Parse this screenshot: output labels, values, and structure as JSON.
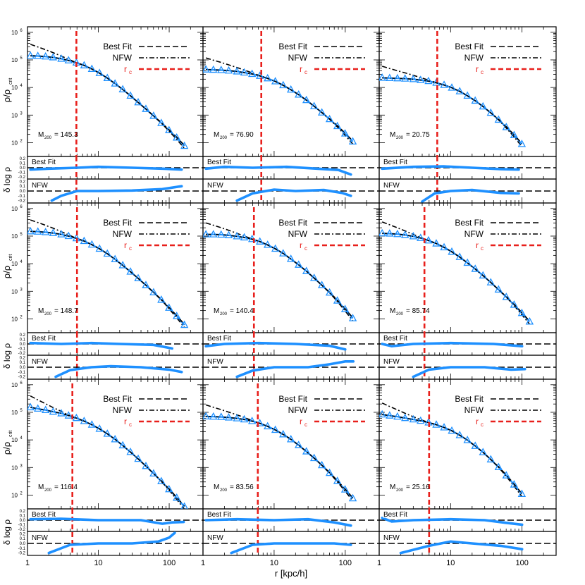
{
  "axes": {
    "xlabel": "r [kpc/h]",
    "ylabel_main": "ρ/ρ",
    "ylabel_main_sub": "crit",
    "ylabel_resid": "δ log ρ",
    "x_ticks": [
      "1",
      "10",
      "100"
    ],
    "y_ticks_main": [
      {
        "base": "10",
        "exp": "6"
      },
      {
        "base": "10",
        "exp": "5"
      },
      {
        "base": "10",
        "exp": "4"
      },
      {
        "base": "10",
        "exp": "3"
      },
      {
        "base": "10",
        "exp": "2"
      }
    ],
    "resid_ticks": [
      "0.2",
      "0.1",
      "0.0",
      "-0.1",
      "-0.2"
    ]
  },
  "legend": {
    "best_fit": "Best Fit",
    "nfw": "NFW",
    "rc": "r",
    "rc_sub": "c"
  },
  "residual_labels": {
    "best_fit": "Best Fit",
    "nfw": "NFW"
  },
  "colors": {
    "data": "#1e90ff",
    "rc_line": "#e8201c",
    "fit": "#000000"
  },
  "chart_data": {
    "type": "line",
    "layout": "3x3 grid of density profiles with residual panels",
    "x_scale": "log",
    "xlim": [
      1,
      300
    ],
    "ylim_log10": [
      1.5,
      6.2
    ],
    "resid_ylim": [
      -0.25,
      0.25
    ],
    "panels": [
      {
        "mass_label": "M",
        "mass_sub": "200",
        "mass_value": "= 145.3",
        "rc": 4.9,
        "data_x": [
          1.1,
          1.4,
          1.8,
          2.3,
          3.0,
          3.8,
          4.9,
          6.3,
          8.1,
          10.4,
          13.4,
          17.2,
          22.1,
          28.4,
          36.5,
          46.9,
          60.2,
          77.4,
          99.4,
          127.7,
          164.1
        ],
        "data_y": [
          5.15,
          5.14,
          5.12,
          5.09,
          5.04,
          4.98,
          4.9,
          4.8,
          4.67,
          4.52,
          4.34,
          4.14,
          3.93,
          3.7,
          3.46,
          3.22,
          2.97,
          2.71,
          2.45,
          2.18,
          1.88
        ],
        "resid_best": [
          [
            1.1,
            -0.04
          ],
          [
            2,
            -0.02
          ],
          [
            5,
            0.0
          ],
          [
            10,
            0.02
          ],
          [
            30,
            0.0
          ],
          [
            80,
            -0.02
          ],
          [
            150,
            -0.04
          ]
        ],
        "resid_nfw": [
          [
            2.2,
            -0.2
          ],
          [
            3,
            -0.1
          ],
          [
            5,
            0.0
          ],
          [
            10,
            0.0
          ],
          [
            30,
            0.01
          ],
          [
            80,
            0.04
          ],
          [
            150,
            0.1
          ]
        ]
      },
      {
        "mass_label": "M",
        "mass_sub": "200",
        "mass_value": "= 76.90",
        "rc": 6.6,
        "data_x": [
          1.1,
          1.4,
          1.8,
          2.3,
          3.0,
          3.8,
          4.9,
          6.3,
          8.1,
          10.4,
          13.4,
          17.2,
          22.1,
          28.4,
          36.5,
          46.9,
          60.2,
          77.4,
          99.4,
          127.7
        ],
        "data_y": [
          4.65,
          4.64,
          4.63,
          4.61,
          4.58,
          4.54,
          4.49,
          4.42,
          4.33,
          4.22,
          4.08,
          3.92,
          3.74,
          3.54,
          3.32,
          3.09,
          2.85,
          2.6,
          2.33,
          2.04
        ],
        "resid_best": [
          [
            1.1,
            -0.02
          ],
          [
            2,
            0.02
          ],
          [
            5,
            0.0
          ],
          [
            15,
            0.02
          ],
          [
            40,
            -0.02
          ],
          [
            80,
            -0.05
          ],
          [
            120,
            -0.15
          ]
        ],
        "resid_nfw": [
          [
            3,
            -0.2
          ],
          [
            5,
            -0.05
          ],
          [
            10,
            0.03
          ],
          [
            20,
            0.0
          ],
          [
            50,
            0.02
          ],
          [
            90,
            -0.04
          ],
          [
            120,
            -0.1
          ]
        ]
      },
      {
        "mass_label": "M",
        "mass_sub": "200",
        "mass_value": "= 20.75",
        "rc": 6.5,
        "data_x": [
          1.1,
          1.4,
          1.8,
          2.3,
          3.0,
          3.8,
          4.9,
          6.3,
          8.1,
          10.4,
          13.4,
          17.2,
          22.1,
          28.4,
          36.5,
          46.9,
          60.2,
          77.4,
          99.4
        ],
        "data_y": [
          4.35,
          4.34,
          4.33,
          4.32,
          4.3,
          4.27,
          4.23,
          4.17,
          4.09,
          3.99,
          3.86,
          3.7,
          3.52,
          3.31,
          3.08,
          2.83,
          2.56,
          2.27,
          1.95
        ],
        "resid_best": [
          [
            1.1,
            -0.02
          ],
          [
            3,
            0.02
          ],
          [
            8,
            0.03
          ],
          [
            20,
            0.0
          ],
          [
            50,
            -0.03
          ],
          [
            90,
            -0.04
          ]
        ],
        "resid_nfw": [
          [
            4,
            -0.22
          ],
          [
            6,
            -0.05
          ],
          [
            10,
            0.0
          ],
          [
            20,
            0.02
          ],
          [
            50,
            -0.04
          ],
          [
            90,
            -0.05
          ]
        ]
      },
      {
        "mass_label": "M",
        "mass_sub": "200",
        "mass_value": "= 148.7",
        "rc": 5.0,
        "data_x": [
          1.1,
          1.4,
          1.8,
          2.3,
          3.0,
          3.8,
          4.9,
          6.3,
          8.1,
          10.4,
          13.4,
          17.2,
          22.1,
          28.4,
          36.5,
          46.9,
          60.2,
          77.4,
          99.4,
          127.7,
          164.1
        ],
        "data_y": [
          5.17,
          5.16,
          5.14,
          5.11,
          5.06,
          5.0,
          4.92,
          4.82,
          4.69,
          4.54,
          4.36,
          4.16,
          3.94,
          3.71,
          3.47,
          3.22,
          2.96,
          2.69,
          2.4,
          2.1,
          1.78
        ],
        "resid_best": [
          [
            1.1,
            0.02
          ],
          [
            3,
            0.0
          ],
          [
            8,
            0.02
          ],
          [
            20,
            0.0
          ],
          [
            60,
            -0.02
          ],
          [
            110,
            -0.1
          ]
        ],
        "resid_nfw": [
          [
            2.5,
            -0.2
          ],
          [
            4,
            -0.06
          ],
          [
            8,
            0.0
          ],
          [
            15,
            0.02
          ],
          [
            40,
            0.0
          ],
          [
            100,
            -0.05
          ],
          [
            150,
            -0.1
          ]
        ]
      },
      {
        "mass_label": "M",
        "mass_sub": "200",
        "mass_value": "= 140.4",
        "rc": 5.2,
        "data_x": [
          1.1,
          1.4,
          1.8,
          2.3,
          3.0,
          3.8,
          4.9,
          6.3,
          8.1,
          10.4,
          13.4,
          17.2,
          22.1,
          28.4,
          36.5,
          46.9,
          60.2,
          77.4,
          99.4,
          127.7
        ],
        "data_y": [
          5.06,
          5.06,
          5.05,
          5.03,
          4.99,
          4.95,
          4.89,
          4.8,
          4.68,
          4.54,
          4.37,
          4.17,
          3.96,
          3.73,
          3.48,
          3.22,
          2.95,
          2.66,
          2.35,
          2.02
        ],
        "resid_best": [
          [
            1.1,
            -0.05
          ],
          [
            2,
            0.0
          ],
          [
            6,
            0.02
          ],
          [
            20,
            0.0
          ],
          [
            60,
            -0.04
          ],
          [
            100,
            -0.12
          ]
        ],
        "resid_nfw": [
          [
            3,
            -0.2
          ],
          [
            5,
            -0.07
          ],
          [
            10,
            0.0
          ],
          [
            30,
            0.0
          ],
          [
            60,
            0.06
          ],
          [
            100,
            0.12
          ],
          [
            130,
            0.12
          ]
        ]
      },
      {
        "mass_label": "M",
        "mass_sub": "200",
        "mass_value": "= 85.74",
        "rc": 4.3,
        "data_x": [
          1.1,
          1.4,
          1.8,
          2.3,
          3.0,
          3.8,
          4.9,
          6.3,
          8.1,
          10.4,
          13.4,
          17.2,
          22.1,
          28.4,
          36.5,
          46.9,
          60.2,
          77.4,
          99.4,
          127.7
        ],
        "data_y": [
          5.1,
          5.09,
          5.07,
          5.04,
          4.99,
          4.93,
          4.84,
          4.73,
          4.59,
          4.43,
          4.24,
          4.03,
          3.81,
          3.57,
          3.32,
          3.06,
          2.79,
          2.51,
          2.21,
          1.9
        ],
        "resid_best": [
          [
            1.1,
            0.0
          ],
          [
            1.5,
            -0.05
          ],
          [
            3,
            0.0
          ],
          [
            10,
            0.02
          ],
          [
            40,
            0.0
          ],
          [
            100,
            -0.05
          ]
        ],
        "resid_nfw": [
          [
            3,
            -0.2
          ],
          [
            5,
            -0.05
          ],
          [
            10,
            0.0
          ],
          [
            30,
            0.0
          ],
          [
            70,
            -0.05
          ],
          [
            110,
            -0.04
          ]
        ]
      },
      {
        "mass_label": "M",
        "mass_sub": "200",
        "mass_value": "= 116.4",
        "rc": 4.3,
        "data_x": [
          1.1,
          1.4,
          1.8,
          2.3,
          3.0,
          3.8,
          4.9,
          6.3,
          8.1,
          10.4,
          13.4,
          17.2,
          22.1,
          28.4,
          36.5,
          46.9,
          60.2,
          77.4,
          99.4,
          127.7,
          164.1
        ],
        "data_y": [
          5.18,
          5.13,
          5.08,
          5.02,
          4.96,
          4.88,
          4.79,
          4.68,
          4.55,
          4.4,
          4.22,
          4.02,
          3.8,
          3.56,
          3.31,
          3.05,
          2.78,
          2.5,
          2.21,
          1.9,
          1.58
        ],
        "resid_best": [
          [
            1.1,
            0.02
          ],
          [
            3,
            0.03
          ],
          [
            10,
            0.0
          ],
          [
            40,
            0.0
          ],
          [
            80,
            -0.08
          ],
          [
            110,
            -0.05
          ],
          [
            160,
            -0.04
          ]
        ],
        "resid_nfw": [
          [
            2,
            -0.2
          ],
          [
            4,
            -0.03
          ],
          [
            10,
            0.0
          ],
          [
            30,
            0.0
          ],
          [
            70,
            0.04
          ],
          [
            100,
            0.12
          ],
          [
            120,
            0.22
          ]
        ]
      },
      {
        "mass_label": "M",
        "mass_sub": "200",
        "mass_value": "= 83.56",
        "rc": 5.9,
        "data_x": [
          1.1,
          1.4,
          1.8,
          2.3,
          3.0,
          3.8,
          4.9,
          6.3,
          8.1,
          10.4,
          13.4,
          17.2,
          22.1,
          28.4,
          36.5,
          46.9,
          60.2,
          77.4,
          99.4,
          127.7
        ],
        "data_y": [
          4.85,
          4.84,
          4.83,
          4.81,
          4.78,
          4.74,
          4.68,
          4.6,
          4.49,
          4.36,
          4.2,
          4.02,
          3.81,
          3.58,
          3.34,
          3.08,
          2.8,
          2.51,
          2.2,
          1.88
        ],
        "resid_best": [
          [
            1.1,
            0.0
          ],
          [
            3,
            0.02
          ],
          [
            10,
            0.0
          ],
          [
            30,
            0.02
          ],
          [
            70,
            -0.05
          ],
          [
            120,
            -0.12
          ]
        ],
        "resid_nfw": [
          [
            2.5,
            -0.2
          ],
          [
            5,
            -0.03
          ],
          [
            10,
            0.0
          ],
          [
            30,
            0.0
          ],
          [
            70,
            0.0
          ],
          [
            120,
            -0.03
          ]
        ]
      },
      {
        "mass_label": "M",
        "mass_sub": "200",
        "mass_value": "= 25.16",
        "rc": 5.0,
        "data_x": [
          1.1,
          1.4,
          1.8,
          2.3,
          3.0,
          3.8,
          4.9,
          6.3,
          8.1,
          10.4,
          13.4,
          17.2,
          22.1,
          28.4,
          36.5,
          46.9,
          60.2,
          77.4,
          99.4
        ],
        "data_y": [
          4.92,
          4.88,
          4.84,
          4.79,
          4.74,
          4.69,
          4.63,
          4.55,
          4.45,
          4.33,
          4.17,
          3.99,
          3.78,
          3.55,
          3.29,
          3.01,
          2.71,
          2.38,
          2.04
        ],
        "resid_best": [
          [
            1.1,
            0.05
          ],
          [
            1.5,
            -0.03
          ],
          [
            3,
            0.0
          ],
          [
            10,
            0.02
          ],
          [
            30,
            0.0
          ],
          [
            60,
            -0.06
          ],
          [
            100,
            -0.1
          ]
        ],
        "resid_nfw": [
          [
            2,
            -0.2
          ],
          [
            5,
            -0.05
          ],
          [
            10,
            0.04
          ],
          [
            20,
            0.0
          ],
          [
            50,
            -0.05
          ],
          [
            100,
            -0.12
          ]
        ]
      }
    ]
  }
}
